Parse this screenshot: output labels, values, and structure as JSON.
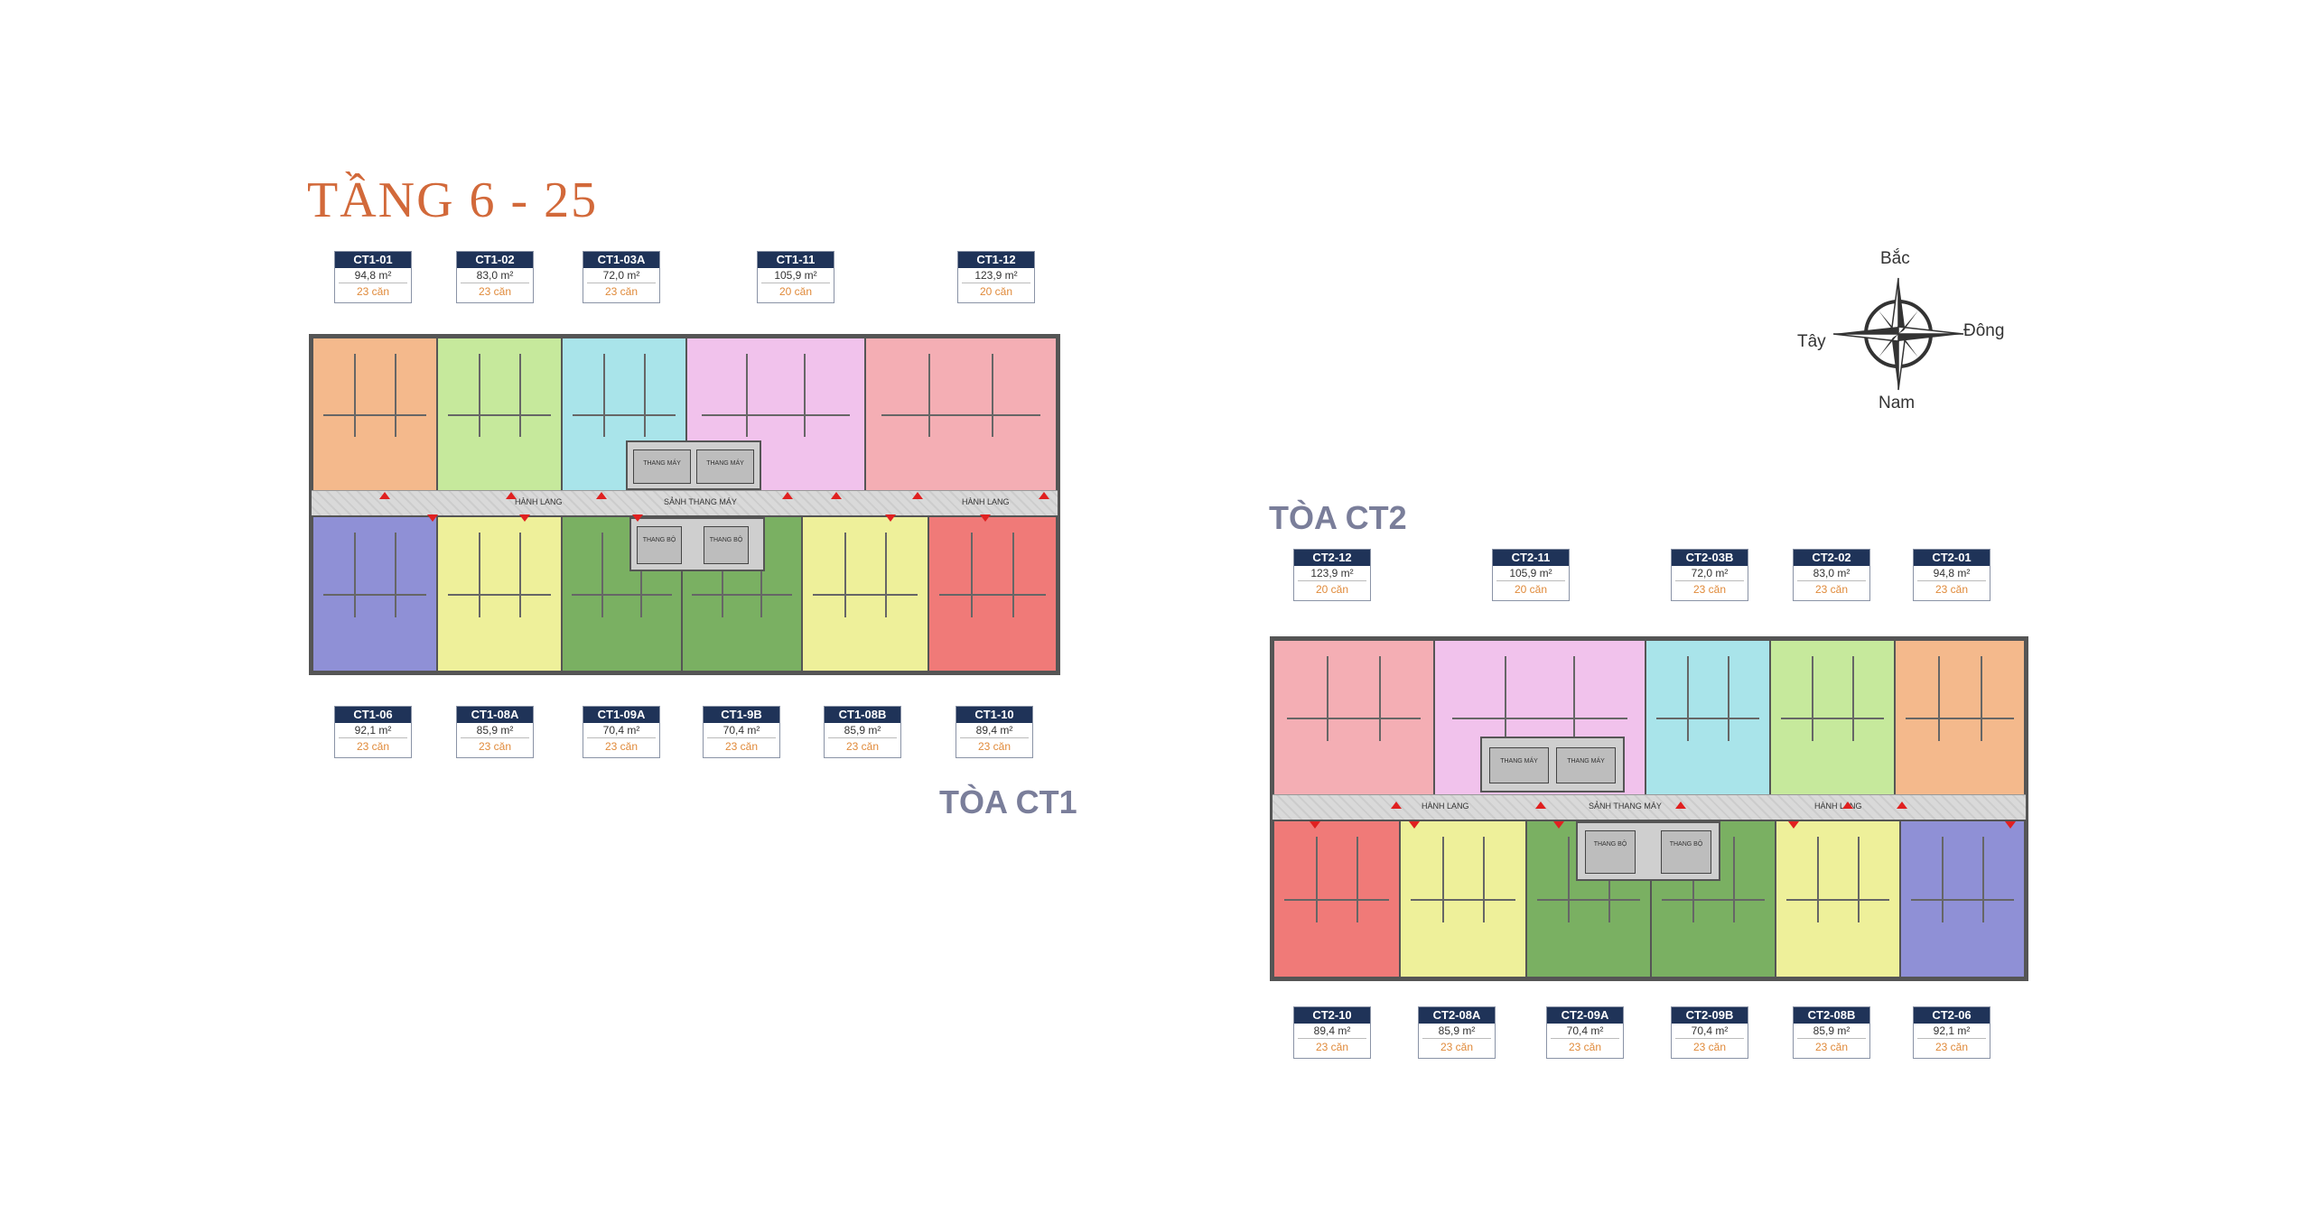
{
  "title": "TẦNG 6 - 25",
  "buildings": [
    {
      "label": "TÒA CT1",
      "corridor_labels": [
        "HÀNH LANG",
        "SẢNH THANG MÁY",
        "HÀNH LANG"
      ],
      "core_labels": [
        "THANG MÁY",
        "THANG MÁY",
        "THANG BỘ",
        "THANG BỘ"
      ],
      "top_units": [
        {
          "code": "CT1-01",
          "area": "94,8 m²",
          "count": "23 căn",
          "color": "#f4b98c"
        },
        {
          "code": "CT1-02",
          "area": "83,0 m²",
          "count": "23 căn",
          "color": "#c6e99c"
        },
        {
          "code": "CT1-03A",
          "area": "72,0 m²",
          "count": "23 căn",
          "color": "#a9e4ea"
        },
        {
          "code": "CT1-11",
          "area": "105,9 m²",
          "count": "20 căn",
          "color": "#f1c2ec"
        },
        {
          "code": "CT1-12",
          "area": "123,9 m²",
          "count": "20 căn",
          "color": "#f4aeb4"
        }
      ],
      "bottom_units": [
        {
          "code": "CT1-06",
          "area": "92,1 m²",
          "count": "23 căn",
          "color": "#8f90d6"
        },
        {
          "code": "CT1-08A",
          "area": "85,9 m²",
          "count": "23 căn",
          "color": "#eef09a"
        },
        {
          "code": "CT1-09A",
          "area": "70,4 m²",
          "count": "23 căn",
          "color": "#7ab062"
        },
        {
          "code": "CT1-9B",
          "area": "70,4 m²",
          "count": "23 căn",
          "color": "#7ab062"
        },
        {
          "code": "CT1-08B",
          "area": "85,9 m²",
          "count": "23 căn",
          "color": "#eef09a"
        },
        {
          "code": "CT1-10",
          "area": "89,4 m²",
          "count": "23 căn",
          "color": "#f07a78"
        }
      ]
    },
    {
      "label": "TÒA CT2",
      "corridor_labels": [
        "HÀNH LANG",
        "SẢNH THANG MÁY",
        "HÀNH LANG"
      ],
      "core_labels": [
        "THANG MÁY",
        "THANG MÁY",
        "THANG BỘ",
        "THANG BỘ"
      ],
      "top_units": [
        {
          "code": "CT2-12",
          "area": "123,9 m²",
          "count": "20 căn",
          "color": "#f4aeb4"
        },
        {
          "code": "CT2-11",
          "area": "105,9 m²",
          "count": "20 căn",
          "color": "#f1c2ec"
        },
        {
          "code": "CT2-03B",
          "area": "72,0 m²",
          "count": "23 căn",
          "color": "#a9e4ea"
        },
        {
          "code": "CT2-02",
          "area": "83,0 m²",
          "count": "23 căn",
          "color": "#c6e99c"
        },
        {
          "code": "CT2-01",
          "area": "94,8 m²",
          "count": "23 căn",
          "color": "#f4b98c"
        }
      ],
      "bottom_units": [
        {
          "code": "CT2-10",
          "area": "89,4 m²",
          "count": "23 căn",
          "color": "#f07a78"
        },
        {
          "code": "CT2-08A",
          "area": "85,9 m²",
          "count": "23 căn",
          "color": "#eef09a"
        },
        {
          "code": "CT2-09A",
          "area": "70,4 m²",
          "count": "23 căn",
          "color": "#7ab062"
        },
        {
          "code": "CT2-09B",
          "area": "70,4 m²",
          "count": "23 căn",
          "color": "#7ab062"
        },
        {
          "code": "CT2-08B",
          "area": "85,9 m²",
          "count": "23 căn",
          "color": "#eef09a"
        },
        {
          "code": "CT2-06",
          "area": "92,1 m²",
          "count": "23 căn",
          "color": "#8f90d6"
        }
      ]
    }
  ],
  "compass": {
    "north": "Bắc",
    "south": "Nam",
    "east": "Đông",
    "west": "Tây"
  }
}
